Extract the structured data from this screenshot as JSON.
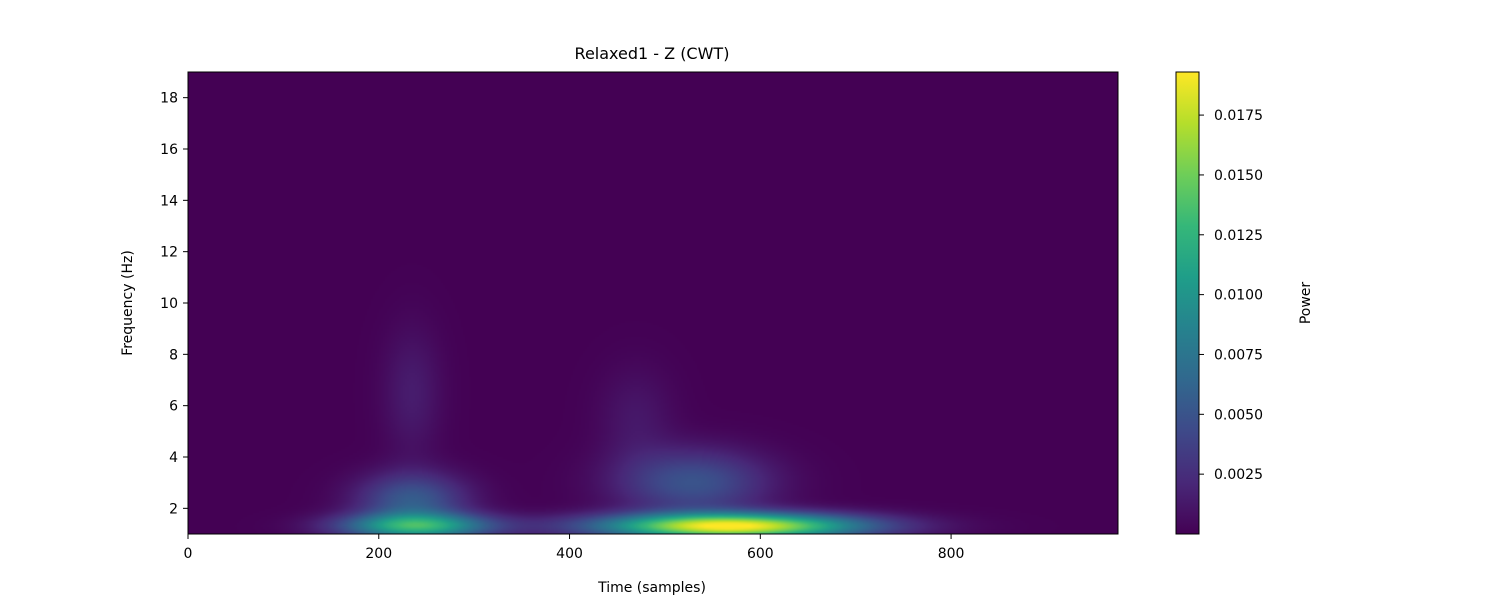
{
  "chart_data": {
    "type": "heatmap",
    "title": "Relaxed1 - Z (CWT)",
    "xlabel": "Time (samples)",
    "ylabel": "Frequency (Hz)",
    "xlim": [
      0,
      975
    ],
    "ylim": [
      1,
      19
    ],
    "x_ticks": [
      0,
      200,
      400,
      600,
      800
    ],
    "x_tick_labels": [
      "0",
      "200",
      "400",
      "600",
      "800"
    ],
    "y_ticks": [
      2,
      4,
      6,
      8,
      10,
      12,
      14,
      16,
      18
    ],
    "y_tick_labels": [
      "2",
      "4",
      "6",
      "8",
      "10",
      "12",
      "14",
      "16",
      "18"
    ],
    "colormap": "viridis",
    "colorbar": {
      "label": "Power",
      "range": [
        0.0,
        0.0193
      ],
      "ticks": [
        0.0025,
        0.005,
        0.0075,
        0.01,
        0.0125,
        0.015,
        0.0175
      ],
      "tick_labels": [
        "0.0025",
        "0.0050",
        "0.0075",
        "0.0100",
        "0.0125",
        "0.0150",
        "0.0175"
      ]
    },
    "peaks": [
      {
        "time": 570,
        "frequency": 1.3,
        "power": 0.0193
      },
      {
        "time": 240,
        "frequency": 1.3,
        "power": 0.0115
      },
      {
        "time": 235,
        "frequency": 2.3,
        "power": 0.0055
      },
      {
        "time": 530,
        "frequency": 3.0,
        "power": 0.005
      },
      {
        "time": 235,
        "frequency": 6.5,
        "power": 0.0015
      },
      {
        "time": 470,
        "frequency": 5.5,
        "power": 0.0012
      }
    ]
  }
}
